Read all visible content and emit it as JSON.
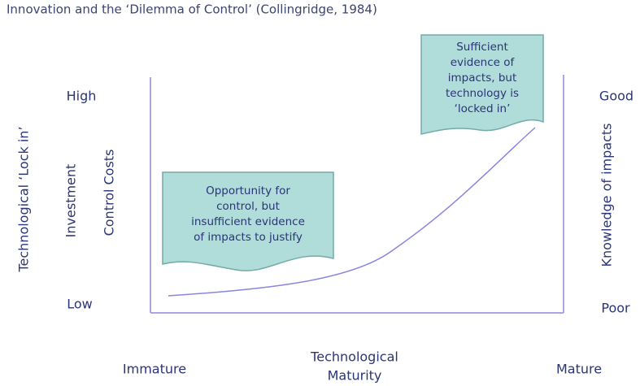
{
  "title": "Innovation and the ‘Dilemma of Control’ (Collingridge, 1984)",
  "left_axis": {
    "high": "High",
    "low": "Low",
    "labels": [
      "Technological ‘Lock in’",
      "Investment",
      "Control Costs"
    ]
  },
  "right_axis": {
    "high": "Good",
    "low": "Poor",
    "label": "Knowledge of impacts"
  },
  "x_axis": {
    "start": "Immature",
    "label": [
      "Technological",
      "Maturity"
    ],
    "end": "Mature"
  },
  "boxes": [
    {
      "lines": [
        "Opportunity for",
        "control, but",
        "insufficient evidence",
        "of impacts to justify"
      ]
    },
    {
      "lines": [
        "Sufficient",
        "evidence of",
        "impacts, but",
        "technology is",
        "‘locked in’"
      ]
    }
  ]
}
